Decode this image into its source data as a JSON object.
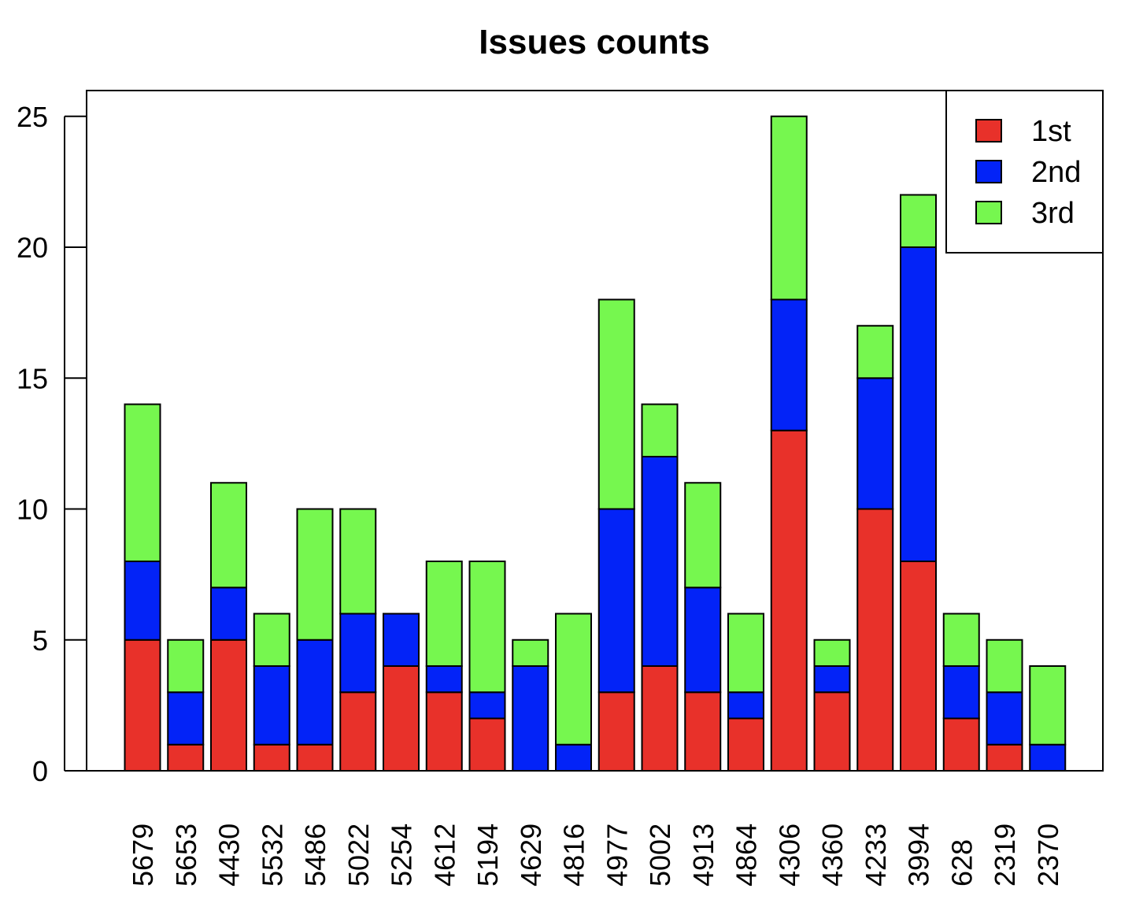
{
  "chart_data": {
    "type": "bar",
    "stacked": true,
    "title": "Issues counts",
    "xlabel": "",
    "ylabel": "",
    "ylim": [
      0,
      26
    ],
    "yticks": [
      0,
      5,
      10,
      15,
      20,
      25
    ],
    "grid": false,
    "legend_position": "top-right",
    "categories": [
      "5679",
      "5653",
      "4430",
      "5532",
      "5486",
      "5022",
      "5254",
      "4612",
      "5194",
      "4629",
      "4816",
      "4977",
      "5002",
      "4913",
      "4864",
      "4306",
      "4360",
      "4233",
      "3994",
      "628",
      "2319",
      "2370"
    ],
    "series": [
      {
        "name": "1st",
        "color": "#e8312a",
        "values": [
          5,
          1,
          5,
          1,
          1,
          3,
          4,
          3,
          2,
          0,
          0,
          3,
          4,
          3,
          2,
          13,
          3,
          10,
          8,
          2,
          1,
          0
        ]
      },
      {
        "name": "2nd",
        "color": "#0323f7",
        "values": [
          3,
          2,
          2,
          3,
          4,
          3,
          2,
          1,
          1,
          4,
          1,
          7,
          8,
          4,
          1,
          5,
          1,
          5,
          12,
          2,
          2,
          1
        ]
      },
      {
        "name": "3rd",
        "color": "#76f74f",
        "values": [
          6,
          2,
          4,
          2,
          5,
          4,
          0,
          4,
          5,
          1,
          5,
          8,
          2,
          4,
          3,
          7,
          1,
          2,
          2,
          2,
          2,
          3
        ]
      }
    ]
  }
}
